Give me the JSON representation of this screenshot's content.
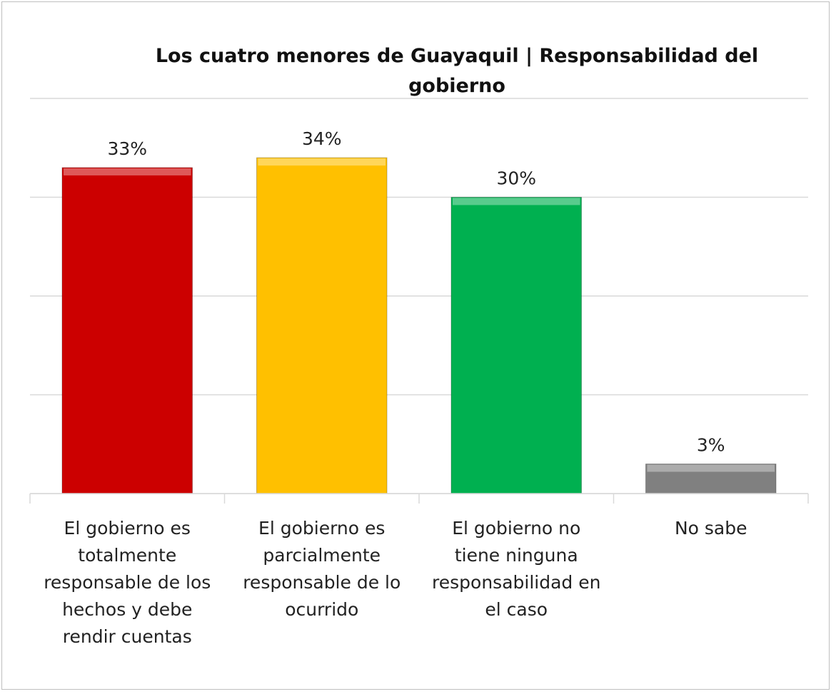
{
  "chart_data": {
    "type": "bar",
    "title": "Los cuatro menores de Guayaquil | Responsabilidad del gobierno",
    "categories": [
      "El gobierno es totalmente responsable de los hechos y debe rendir cuentas",
      "El gobierno es parcialmente responsable de lo ocurrido",
      "El gobierno no tiene ninguna responsabilidad en el caso",
      "No sabe"
    ],
    "values": [
      33,
      34,
      30,
      3
    ],
    "value_labels": [
      "33%",
      "34%",
      "30%",
      "3%"
    ],
    "colors": [
      "#cc0000",
      "#ffc000",
      "#00b050",
      "#808080"
    ],
    "ylim": [
      0,
      40
    ],
    "yticks": [
      0,
      10,
      20,
      30,
      40
    ],
    "grid": true
  }
}
